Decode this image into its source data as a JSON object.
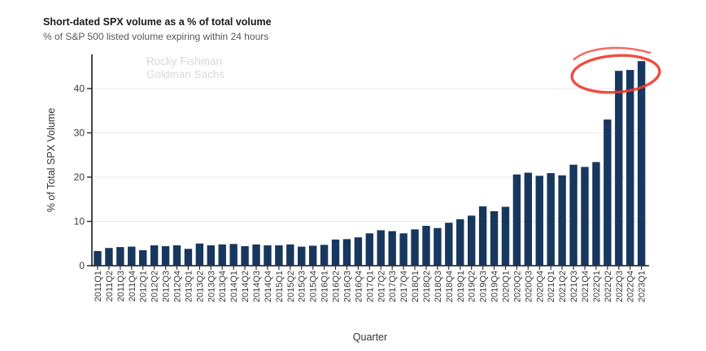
{
  "title": "Short-dated SPX volume as a % of total volume",
  "subtitle": "% of S&P 500 listed volume expiring within 24 hours",
  "watermark": {
    "line1": "Rocky Fishman",
    "line2": "Goldman Sachs"
  },
  "chart_data": {
    "type": "bar",
    "title": "Short-dated SPX volume as a % of total volume",
    "subtitle": "% of S&P 500 listed volume expiring within 24 hours",
    "xlabel": "Quarter",
    "ylabel": "% of Total SPX Volume",
    "ylim": [
      0,
      47.7
    ],
    "yticks": [
      0,
      10,
      20,
      30,
      40
    ],
    "grid": true,
    "categories": [
      "2011Q1",
      "2011Q2",
      "2011Q3",
      "2011Q4",
      "2012Q1",
      "2012Q2",
      "2012Q3",
      "2012Q4",
      "2013Q1",
      "2013Q2",
      "2013Q3",
      "2013Q4",
      "2014Q1",
      "2014Q2",
      "2014Q3",
      "2014Q4",
      "2015Q1",
      "2015Q2",
      "2015Q3",
      "2015Q4",
      "2016Q1",
      "2016Q2",
      "2016Q3",
      "2016Q4",
      "2017Q1",
      "2017Q2",
      "2017Q3",
      "2017Q4",
      "2018Q1",
      "2018Q2",
      "2018Q3",
      "2018Q4",
      "2019Q1",
      "2019Q2",
      "2019Q3",
      "2019Q4",
      "2020Q1",
      "2020Q2",
      "2020Q3",
      "2020Q4",
      "2021Q1",
      "2021Q2",
      "2021Q3",
      "2021Q4",
      "2022Q1",
      "2022Q2",
      "2022Q3",
      "2022Q4",
      "2023Q1"
    ],
    "values": [
      3.3,
      4.0,
      4.2,
      4.3,
      3.5,
      4.6,
      4.4,
      4.6,
      3.8,
      5.0,
      4.6,
      4.8,
      4.9,
      4.4,
      4.8,
      4.6,
      4.6,
      4.8,
      4.3,
      4.5,
      4.7,
      5.9,
      6.0,
      6.4,
      7.3,
      8.0,
      7.8,
      7.3,
      8.2,
      9.0,
      8.5,
      9.7,
      10.5,
      11.3,
      13.4,
      12.3,
      13.3,
      20.6,
      21.0,
      20.3,
      20.9,
      20.4,
      22.8,
      22.3,
      23.4,
      33.0,
      44.0,
      44.2,
      46.2
    ],
    "annotation": {
      "shape": "ellipse",
      "highlights": [
        "2022Q3",
        "2022Q4",
        "2023Q1"
      ],
      "color": "#ee3a2c"
    },
    "colors": {
      "bar": "#17375e",
      "grid": "#e9e9e9",
      "axis": "#333333",
      "watermark": "#d9d9d9"
    }
  }
}
